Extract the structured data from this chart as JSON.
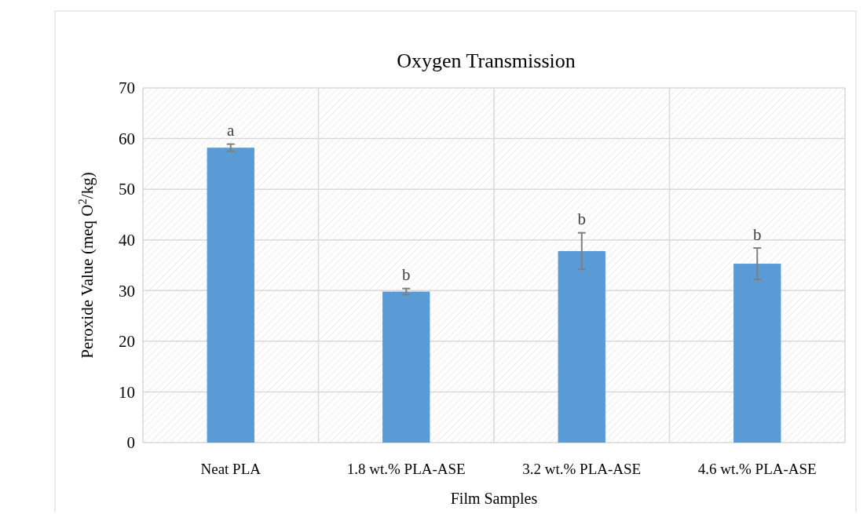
{
  "chart_data": {
    "type": "bar",
    "title": "Oxygen Transmission",
    "xlabel": "Film Samples",
    "ylabel": "Peroxide Value (meq O$^{2}$/kg)",
    "categories": [
      "Neat PLA",
      "1.8 wt.% PLA-ASE",
      "3.2 wt.% PLA-ASE",
      "4.6 wt.% PLA-ASE"
    ],
    "values": [
      58.2,
      29.8,
      37.8,
      35.3
    ],
    "errors": [
      0.7,
      0.6,
      3.6,
      3.1
    ],
    "color": "#5b9bd5",
    "ylim": [
      0,
      70
    ],
    "yticks": [
      0,
      10,
      20,
      30,
      40,
      50,
      60,
      70
    ],
    "grid": true,
    "annotations": [
      {
        "text": "a",
        "x": "Neat PLA",
        "y": 59
      },
      {
        "text": "b",
        "x": "1.8 wt.% PLA-ASE",
        "y": 30.5
      },
      {
        "text": "b",
        "x": "3.2 wt.% PLA-ASE",
        "y": 41.5
      },
      {
        "text": "b",
        "x": "4.6 wt.% PLA-ASE",
        "y": 38.4
      }
    ]
  }
}
